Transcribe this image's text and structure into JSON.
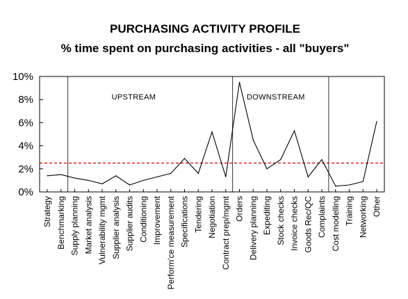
{
  "chart_data": {
    "type": "line",
    "title": "PURCHASING ACTIVITY PROFILE",
    "subtitle": "% time spent on purchasing activities - all \"buyers\"",
    "xlabel": "",
    "ylabel": "",
    "ylim": [
      0,
      10
    ],
    "y_ticks": [
      "0%",
      "2%",
      "4%",
      "6%",
      "8%",
      "10%"
    ],
    "grid": false,
    "categories": [
      "Strategy",
      "Benchmarking",
      "Supply planning",
      "Market analysis",
      "Vulnerability mgmt",
      "Supplier analysis",
      "Supplier audits",
      "Conditioning",
      "Improvement",
      "Perform'ce measurement",
      "Specifications",
      "Tendering",
      "Negotiation",
      "Contract prep/mgmt",
      "Orders",
      "Delivery planning",
      "Expediting",
      "Stock checks",
      "Invoice checks",
      "Goods Rec/QC",
      "Complaints",
      "Cost modelling",
      "Training",
      "Networking",
      "Other"
    ],
    "series": [
      {
        "values": [
          1.4,
          1.5,
          1.2,
          1.0,
          0.7,
          1.4,
          0.6,
          1.0,
          1.3,
          1.6,
          2.9,
          1.6,
          5.2,
          1.3,
          9.5,
          4.5,
          2.0,
          2.8,
          5.3,
          1.3,
          2.8,
          0.5,
          0.6,
          0.9,
          6.1
        ],
        "color": "#000000"
      }
    ],
    "reference_line": {
      "value": 2.5,
      "color": "#cc0000",
      "style": "dashed"
    },
    "regions": [
      {
        "label": "UPSTREAM",
        "from_index": 2,
        "to_index": 14
      },
      {
        "label": "DOWNSTREAM",
        "from_index": 14,
        "to_index": 21
      }
    ],
    "legend": "none"
  }
}
